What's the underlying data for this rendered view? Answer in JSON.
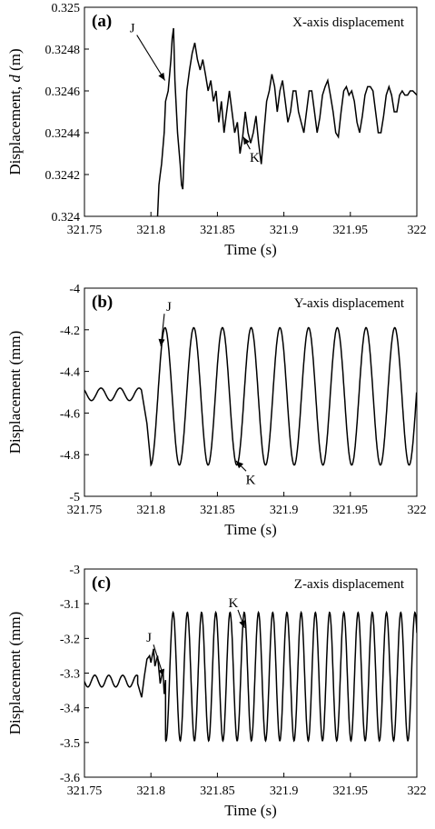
{
  "chart_data": [
    {
      "type": "line",
      "panel_label": "(a)",
      "title": "X-axis displacement",
      "xlabel": "Time (s)",
      "ylabel": "Displacement, d (m)",
      "xlim": [
        321.75,
        322
      ],
      "ylim": [
        0.324,
        0.325
      ],
      "xticks": [
        "321.75",
        "321.8",
        "321.85",
        "321.9",
        "321.95",
        "322"
      ],
      "yticks": [
        "0.324",
        "0.3242",
        "0.3244",
        "0.3246",
        "0.3248",
        "0.325"
      ],
      "x": [
        321.805,
        321.806,
        321.807,
        321.808,
        321.81,
        321.811,
        321.813,
        321.815,
        321.816,
        321.817,
        321.818,
        321.82,
        321.822,
        321.823,
        321.824,
        321.825,
        321.827,
        321.829,
        321.831,
        321.833,
        321.835,
        321.837,
        321.839,
        321.841,
        321.843,
        321.845,
        321.847,
        321.849,
        321.851,
        321.853,
        321.855,
        321.857,
        321.859,
        321.861,
        321.863,
        321.865,
        321.867,
        321.869,
        321.871,
        321.873,
        321.875,
        321.877,
        321.879,
        321.881,
        321.883,
        321.885,
        321.887,
        321.889,
        321.891,
        321.893,
        321.895,
        321.897,
        321.899,
        321.901,
        321.903,
        321.905,
        321.907,
        321.909,
        321.911,
        321.913,
        321.915,
        321.917,
        321.919,
        321.921,
        321.923,
        321.925,
        321.927,
        321.929,
        321.931,
        321.933,
        321.935,
        321.937,
        321.939,
        321.941,
        321.943,
        321.945,
        321.947,
        321.949,
        321.951,
        321.953,
        321.955,
        321.957,
        321.959,
        321.961,
        321.963,
        321.965,
        321.967,
        321.969,
        321.971,
        321.973,
        321.975,
        321.977,
        321.979,
        321.981,
        321.983,
        321.985,
        321.987,
        321.989,
        321.991,
        321.993,
        321.995,
        321.997,
        322.0
      ],
      "y": [
        0.324,
        0.32415,
        0.3242,
        0.32425,
        0.3244,
        0.32455,
        0.3246,
        0.32475,
        0.32485,
        0.3249,
        0.32465,
        0.3244,
        0.32425,
        0.32415,
        0.32413,
        0.3243,
        0.3246,
        0.3247,
        0.32478,
        0.32483,
        0.32475,
        0.3247,
        0.32475,
        0.32468,
        0.3246,
        0.32465,
        0.32455,
        0.3246,
        0.32445,
        0.32455,
        0.3244,
        0.3245,
        0.3246,
        0.3245,
        0.3244,
        0.32445,
        0.3243,
        0.32438,
        0.3245,
        0.3244,
        0.32435,
        0.3244,
        0.32448,
        0.32435,
        0.32425,
        0.3244,
        0.32455,
        0.3246,
        0.32468,
        0.32462,
        0.3245,
        0.3246,
        0.32465,
        0.32455,
        0.32445,
        0.3245,
        0.3246,
        0.3246,
        0.3245,
        0.32445,
        0.3244,
        0.3245,
        0.3246,
        0.3246,
        0.3245,
        0.3244,
        0.32447,
        0.32458,
        0.32462,
        0.32465,
        0.32458,
        0.3245,
        0.3244,
        0.32438,
        0.3245,
        0.3246,
        0.32462,
        0.32458,
        0.3246,
        0.32455,
        0.32445,
        0.3244,
        0.32448,
        0.32458,
        0.32462,
        0.32462,
        0.3246,
        0.3245,
        0.3244,
        0.3244,
        0.32448,
        0.32458,
        0.32462,
        0.32458,
        0.3245,
        0.3245,
        0.32458,
        0.3246,
        0.32458,
        0.32458,
        0.3246,
        0.3246,
        0.32458
      ],
      "annotations": [
        {
          "text": "J",
          "label_x": 321.786,
          "label_y": 0.32488,
          "tip_x": 321.8105,
          "tip_y": 0.32465
        },
        {
          "text": "K",
          "label_x": 321.878,
          "label_y": 0.32426,
          "tip_x": 321.8695,
          "tip_y": 0.32438
        }
      ]
    },
    {
      "type": "line",
      "panel_label": "(b)",
      "title": "Y-axis displacement",
      "xlabel": "Time (s)",
      "ylabel": "Displacement (mm)",
      "xlim": [
        321.75,
        322
      ],
      "ylim": [
        -5,
        -4
      ],
      "xticks": [
        "321.75",
        "321.8",
        "321.85",
        "321.9",
        "321.95",
        "322"
      ],
      "yticks": [
        "-5",
        "-4.8",
        "-4.6",
        "-4.4",
        "-4.2",
        "-4"
      ],
      "pre": {
        "x0": 321.75,
        "x1": 321.793,
        "mean": -4.51,
        "amp": 0.03,
        "period": 0.0143,
        "phase": 2.4
      },
      "osc": {
        "x0": 321.8,
        "x1": 322.0,
        "mean": -4.52,
        "amp": 0.33,
        "period": 0.0216,
        "first_peak": 321.8106
      },
      "annotations": [
        {
          "text": "J",
          "label_x": 321.8135,
          "label_y": -4.11,
          "tip_x": 321.8075,
          "tip_y": -4.28
        },
        {
          "text": "K",
          "label_x": 321.875,
          "label_y": -4.94,
          "tip_x": 321.864,
          "tip_y": -4.83
        }
      ]
    },
    {
      "type": "line",
      "panel_label": "(c)",
      "title": "Z-axis displacement",
      "xlabel": "Time (s)",
      "ylabel": "Displacement (mm)",
      "xlim": [
        321.75,
        322
      ],
      "ylim": [
        -3.6,
        -3
      ],
      "xticks": [
        "321.75",
        "321.8",
        "321.85",
        "321.9",
        "321.95",
        "322"
      ],
      "yticks": [
        "-3.6",
        "-3.5",
        "-3.4",
        "-3.3",
        "-3.2",
        "-3.1",
        "-3"
      ],
      "pre": {
        "x0": 321.75,
        "x1": 321.79,
        "mean": -3.323,
        "amp": 0.017,
        "period": 0.0105,
        "phase": 3.2
      },
      "early": {
        "x": [
          321.79,
          321.793,
          321.795,
          321.797,
          321.799,
          321.8,
          321.802,
          321.803,
          321.805,
          321.807,
          321.809,
          321.81,
          321.811
        ],
        "y": [
          -3.33,
          -3.37,
          -3.31,
          -3.26,
          -3.25,
          -3.27,
          -3.23,
          -3.28,
          -3.25,
          -3.33,
          -3.29,
          -3.36,
          -3.32
        ]
      },
      "osc": {
        "x0": 321.811,
        "x1": 322.0,
        "mean": -3.31,
        "amp": 0.185,
        "period": 0.0107,
        "first_peak": 321.8167
      },
      "annotations": [
        {
          "text": "J",
          "label_x": 321.7985,
          "label_y": -3.21,
          "tip_x": 321.8095,
          "tip_y": -3.31
        },
        {
          "text": "K",
          "label_x": 321.862,
          "label_y": -3.11,
          "tip_x": 321.8705,
          "tip_y": -3.17
        }
      ]
    }
  ]
}
